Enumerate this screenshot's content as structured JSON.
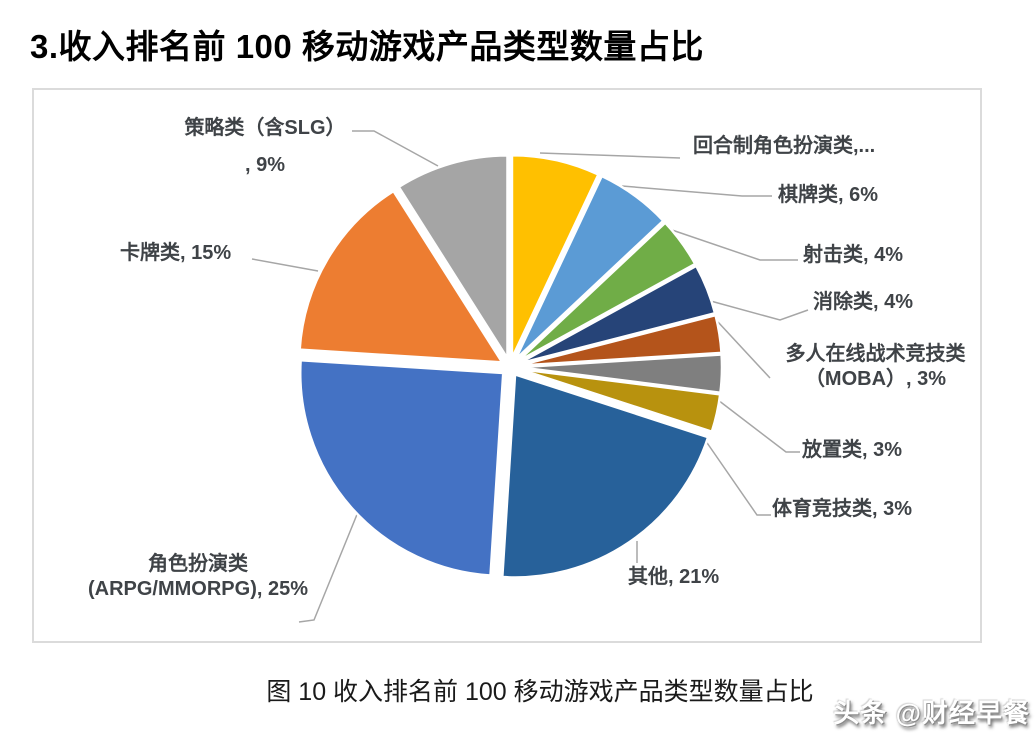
{
  "page": {
    "title": "3.收入排名前 100 移动游戏产品类型数量占比",
    "caption": "图 10 收入排名前 100 移动游戏产品类型数量占比",
    "watermark": "头条 @财经早餐"
  },
  "chart_data": {
    "type": "pie",
    "title": "收入排名前 100 移动游戏产品类型数量占比",
    "unit": "%",
    "total": 100,
    "start_angle_deg": 0,
    "direction": "clockwise",
    "legend": "none",
    "exploded": true,
    "label_color": "#3F4347",
    "leader_line_color": "#A6A6A6",
    "slices": [
      {
        "category": "回合制角色扮演类",
        "value": 7,
        "label": "回合制角色扮演类,...",
        "color": "#FFC000"
      },
      {
        "category": "棋牌类",
        "value": 6,
        "label": "棋牌类, 6%",
        "color": "#5B9BD5"
      },
      {
        "category": "射击类",
        "value": 4,
        "label": "射击类, 4%",
        "color": "#70AD47"
      },
      {
        "category": "消除类",
        "value": 4,
        "label": "消除类, 4%",
        "color": "#264478"
      },
      {
        "category": "多人在线战术竞技类（MOBA）",
        "value": 3,
        "label": "多人在线战术竞技类\n（MOBA）, 3%",
        "color": "#B4541B"
      },
      {
        "category": "放置类",
        "value": 3,
        "label": "放置类, 3%",
        "color": "#7F7F7F"
      },
      {
        "category": "体育竞技类",
        "value": 3,
        "label": "体育竞技类, 3%",
        "color": "#B8920E"
      },
      {
        "category": "其他",
        "value": 21,
        "label": "其他, 21%",
        "color": "#27619A"
      },
      {
        "category": "角色扮演类（ARPG/MMORPG）",
        "value": 25,
        "label": "角色扮演类\n(ARPG/MMORPG), 25%",
        "color": "#4472C4"
      },
      {
        "category": "卡牌类",
        "value": 15,
        "label": "卡牌类, 15%",
        "color": "#ED7D31"
      },
      {
        "category": "策略类（含SLG）",
        "value": 9,
        "label": "策略类（含SLG）\n, 9%",
        "color": "#A5A5A5"
      }
    ]
  }
}
